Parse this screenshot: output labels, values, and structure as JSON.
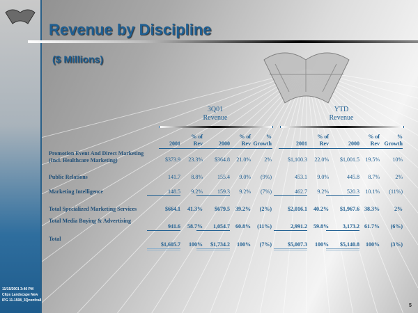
{
  "slide": {
    "title": "Revenue by Discipline",
    "subtitle": "($ Millions)",
    "page_number": "5",
    "footer": {
      "timestamp": "11/15/2001 3:40 PM",
      "file": "Clips Landscape New",
      "doc": "IPG 11-1508_3Qconfcall"
    }
  },
  "table": {
    "groups": [
      {
        "line1": "3Q01",
        "line2": "Revenue"
      },
      {
        "line1": "YTD",
        "line2": "Revenue"
      }
    ],
    "headers": [
      [
        "",
        "2001"
      ],
      [
        "% of",
        "Rev"
      ],
      [
        "",
        "2000"
      ],
      [
        "% of",
        "Rev"
      ],
      [
        "%",
        "Growth"
      ]
    ],
    "rows": [
      {
        "label": "Promotion Event And Direct Marketing",
        "label2": "(Incl. Healthcare Marketing)",
        "q": [
          "$373.9",
          "23.3%",
          "$364.8",
          "21.0%",
          "2%"
        ],
        "ytd": [
          "$1,100.3",
          "22.0%",
          "$1,001.5",
          "19.5%",
          "10%"
        ]
      },
      {
        "label": "Public Relations",
        "q": [
          "141.7",
          "8.8%",
          "155.4",
          "9.0%",
          "(9%)"
        ],
        "ytd": [
          "453.1",
          "9.0%",
          "445.8",
          "8.7%",
          "2%"
        ]
      },
      {
        "label": "Marketing Intelligence",
        "q": [
          "148.5",
          "9.2%",
          "159.3",
          "9.2%",
          "(7%)"
        ],
        "ytd": [
          "462.7",
          "9.2%",
          "520.3",
          "10.1%",
          "(11%)"
        ]
      },
      {
        "label": "Total Specialized Marketing Services",
        "q": [
          "$664.1",
          "41.3%",
          "$679.5",
          "39.2%",
          "(2%)"
        ],
        "ytd": [
          "$2,016.1",
          "40.2%",
          "$1,967.6",
          "38.3%",
          "2%"
        ]
      },
      {
        "label": "Total Media Buying & Advertising",
        "q": [
          "941.6",
          "58.7%",
          "1,054.7",
          "60.8%",
          "(11%)"
        ],
        "ytd": [
          "2,991.2",
          "59.8%",
          "3,173.2",
          "61.7%",
          "(6%)"
        ]
      },
      {
        "label": "Total",
        "q": [
          "$1,605.7",
          "100%",
          "$1,734.2",
          "100%",
          "(7%)"
        ],
        "ytd": [
          "$5,007.3",
          "100%",
          "$5,140.8",
          "100%",
          "(3%)"
        ]
      }
    ]
  }
}
